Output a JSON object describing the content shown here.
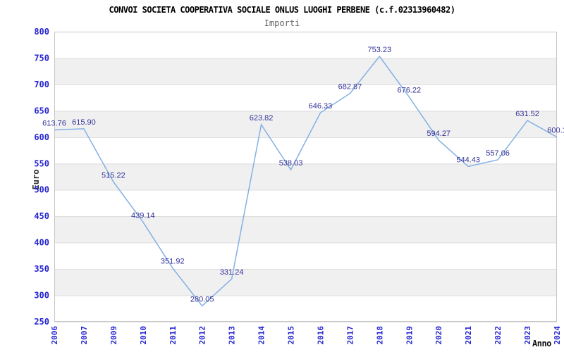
{
  "title": "CONVOI SOCIETA COOPERATIVA SOCIALE ONLUS LUOGHI PERBENE (c.f.02313960482)",
  "subtitle": "Importi",
  "chart_data": {
    "type": "line",
    "title": "CONVOI SOCIETA COOPERATIVA SOCIALE ONLUS LUOGHI PERBENE (c.f.02313960482)",
    "subtitle": "Importi",
    "xlabel": "Anno",
    "ylabel": "Euro",
    "categories": [
      "2006",
      "2007",
      "2009",
      "2010",
      "2011",
      "2012",
      "2013",
      "2014",
      "2015",
      "2016",
      "2017",
      "2018",
      "2019",
      "2020",
      "2021",
      "2022",
      "2023",
      "2024"
    ],
    "values": [
      613.76,
      615.9,
      515.22,
      439.14,
      351.92,
      280.05,
      331.24,
      623.82,
      538.03,
      646.33,
      682.87,
      753.23,
      676.22,
      594.27,
      544.43,
      557.06,
      631.52,
      600.1
    ],
    "point_labels": [
      "613.76",
      "615.90",
      "515.22",
      "439.14",
      "351.92",
      "280.05",
      "331.24",
      "623.82",
      "538.03",
      "646.33",
      "682.87",
      "753.23",
      "676.22",
      "594.27",
      "544.43",
      "557.06",
      "631.52",
      "600.1"
    ],
    "ylim": [
      250,
      800
    ],
    "yticks": [
      250,
      300,
      350,
      400,
      450,
      500,
      550,
      600,
      650,
      700,
      750,
      800
    ],
    "grid": "horizontal-stripes",
    "legend": "none",
    "colors": {
      "line": "#84b1e3",
      "axis_tick_label": "#2525d0",
      "point_label": "#333399",
      "stripe": "#f0f0f0",
      "gridline": "#dedede",
      "plot_border": "#c6c6c6",
      "title": "#000000",
      "subtitle": "#666666",
      "axis_title": "#333333"
    }
  }
}
